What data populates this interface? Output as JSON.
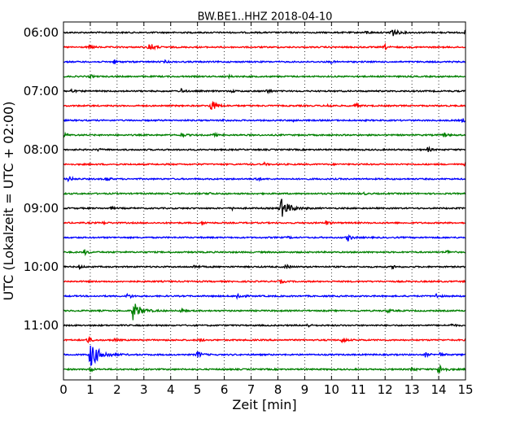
{
  "chart_data": {
    "type": "line",
    "title": "BW.BE1..HHZ 2018-04-10",
    "xlabel": "Zeit  [min]",
    "ylabel": "UTC (Lokalzeit = UTC + 02:00)",
    "xlim": [
      0,
      15
    ],
    "x_ticks": [
      "0",
      "1",
      "2",
      "3",
      "4",
      "5",
      "6",
      "7",
      "8",
      "9",
      "10",
      "11",
      "12",
      "13",
      "14",
      "15"
    ],
    "y_tick_labels": [
      "06:00",
      "07:00",
      "08:00",
      "09:00",
      "10:00",
      "11:00"
    ],
    "grid": "vertical dotted",
    "trace_interval_minutes": 15,
    "first_trace_start": "06:00",
    "trace_colors": [
      "#000000",
      "#ff0000",
      "#0000ff",
      "#008000"
    ],
    "series": [
      {
        "start": "06:00",
        "events": [
          [
            12.2,
            1.0
          ],
          [
            11.3,
            0.3
          ],
          [
            15.0,
            0.3
          ]
        ]
      },
      {
        "start": "06:15",
        "events": [
          [
            3.2,
            0.8
          ],
          [
            1.0,
            0.4
          ],
          [
            12.0,
            0.4
          ]
        ]
      },
      {
        "start": "06:30",
        "events": [
          [
            1.9,
            0.3
          ],
          [
            3.8,
            0.2
          ],
          [
            10.0,
            0.2
          ]
        ]
      },
      {
        "start": "06:45",
        "events": [
          [
            1.0,
            0.3
          ],
          [
            6.2,
            0.2
          ]
        ]
      },
      {
        "start": "07:00",
        "events": [
          [
            4.4,
            0.4
          ],
          [
            7.6,
            0.4
          ],
          [
            6.3,
            0.2
          ],
          [
            0.3,
            0.3
          ]
        ]
      },
      {
        "start": "07:15",
        "events": [
          [
            5.5,
            1.0
          ],
          [
            9.9,
            0.3
          ],
          [
            10.9,
            0.4
          ]
        ]
      },
      {
        "start": "07:30",
        "events": [
          [
            6.0,
            0.2
          ],
          [
            8.6,
            0.2
          ],
          [
            14.9,
            0.3
          ]
        ]
      },
      {
        "start": "07:45",
        "events": [
          [
            4.4,
            0.4
          ],
          [
            5.6,
            0.3
          ],
          [
            14.2,
            0.4
          ],
          [
            0.0,
            0.4
          ]
        ]
      },
      {
        "start": "08:00",
        "events": [
          [
            13.6,
            0.4
          ],
          [
            1.3,
            0.2
          ]
        ]
      },
      {
        "start": "08:15",
        "events": [
          [
            7.5,
            0.2
          ],
          [
            15.0,
            0.3
          ]
        ]
      },
      {
        "start": "08:30",
        "events": [
          [
            1.6,
            0.4
          ],
          [
            7.2,
            0.4
          ],
          [
            0.2,
            0.5
          ]
        ]
      },
      {
        "start": "08:45",
        "events": [
          [
            5.4,
            0.3
          ],
          [
            11.2,
            0.2
          ]
        ]
      },
      {
        "start": "09:00",
        "events": [
          [
            8.1,
            1.8
          ],
          [
            1.8,
            0.2
          ],
          [
            6.3,
            0.2
          ]
        ]
      },
      {
        "start": "09:15",
        "events": [
          [
            5.2,
            0.3
          ],
          [
            9.8,
            0.4
          ],
          [
            1.5,
            0.2
          ]
        ]
      },
      {
        "start": "09:30",
        "events": [
          [
            10.6,
            0.6
          ],
          [
            8.4,
            0.2
          ]
        ]
      },
      {
        "start": "09:45",
        "events": [
          [
            0.8,
            0.4
          ],
          [
            14.3,
            0.3
          ]
        ]
      },
      {
        "start": "10:00",
        "events": [
          [
            4.9,
            0.4
          ],
          [
            8.3,
            0.4
          ],
          [
            12.3,
            0.3
          ],
          [
            0.6,
            0.3
          ]
        ]
      },
      {
        "start": "10:15",
        "events": [
          [
            8.1,
            0.3
          ]
        ]
      },
      {
        "start": "10:30",
        "events": [
          [
            2.4,
            0.5
          ],
          [
            6.5,
            0.6
          ],
          [
            13.9,
            0.4
          ]
        ]
      },
      {
        "start": "10:45",
        "events": [
          [
            2.6,
            1.6
          ],
          [
            4.4,
            0.3
          ],
          [
            12.1,
            0.3
          ]
        ]
      },
      {
        "start": "11:00",
        "events": [
          [
            9.1,
            0.3
          ],
          [
            14.5,
            0.3
          ]
        ]
      },
      {
        "start": "11:15",
        "events": [
          [
            0.9,
            0.6
          ],
          [
            1.9,
            0.3
          ],
          [
            10.4,
            0.5
          ],
          [
            5.1,
            0.3
          ]
        ]
      },
      {
        "start": "11:30",
        "events": [
          [
            1.0,
            2.2
          ],
          [
            5.0,
            0.6
          ],
          [
            13.5,
            0.4
          ],
          [
            14.0,
            0.5
          ]
        ]
      },
      {
        "start": "11:45",
        "events": [
          [
            14.0,
            0.9
          ],
          [
            13.0,
            0.4
          ],
          [
            1.0,
            0.4
          ]
        ]
      }
    ]
  }
}
